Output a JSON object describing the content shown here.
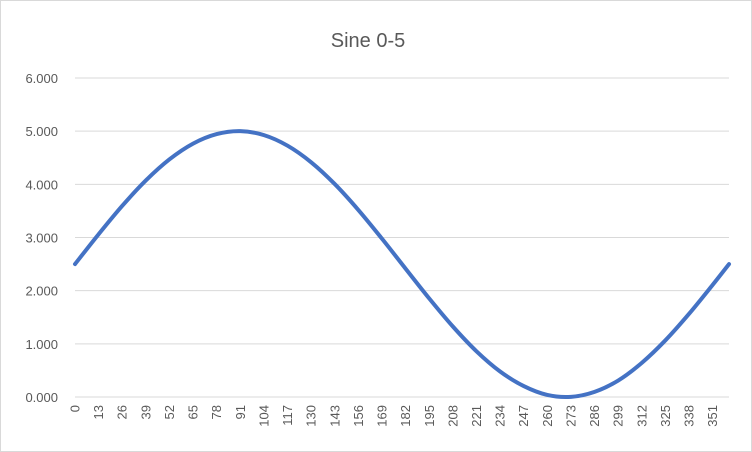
{
  "colors": {
    "series": "#4472c4",
    "grid": "#d9d9d9",
    "text": "#595959",
    "border": "#d9d9d9"
  },
  "chart_data": {
    "type": "line",
    "title": "Sine 0-5",
    "xlabel": "",
    "ylabel": "",
    "ylim": [
      0,
      6
    ],
    "y_ticks": [
      "0.000",
      "1.000",
      "2.000",
      "3.000",
      "4.000",
      "5.000",
      "6.000"
    ],
    "x_tick_labels": [
      "0",
      "13",
      "26",
      "39",
      "52",
      "65",
      "78",
      "91",
      "104",
      "117",
      "130",
      "143",
      "156",
      "169",
      "182",
      "195",
      "208",
      "221",
      "234",
      "247",
      "260",
      "273",
      "286",
      "299",
      "312",
      "325",
      "338",
      "351"
    ],
    "x_tick_step": 13,
    "grid": true,
    "legend": "none",
    "series": [
      {
        "x": [
          0,
          13,
          26,
          39,
          52,
          65,
          78,
          91,
          104,
          117,
          130,
          143,
          156,
          169,
          182,
          195,
          208,
          221,
          234,
          247,
          260,
          273,
          286,
          299,
          312,
          325,
          338,
          351,
          360
        ],
        "values": [
          2.5,
          3.062,
          3.596,
          4.073,
          4.47,
          4.766,
          4.945,
          5.0,
          4.926,
          4.727,
          4.415,
          4.005,
          3.517,
          2.977,
          2.413,
          1.853,
          1.326,
          0.86,
          0.48,
          0.205,
          0.038,
          0.003,
          0.097,
          0.31,
          0.642,
          1.066,
          1.564,
          2.109,
          2.5
        ]
      }
    ]
  }
}
